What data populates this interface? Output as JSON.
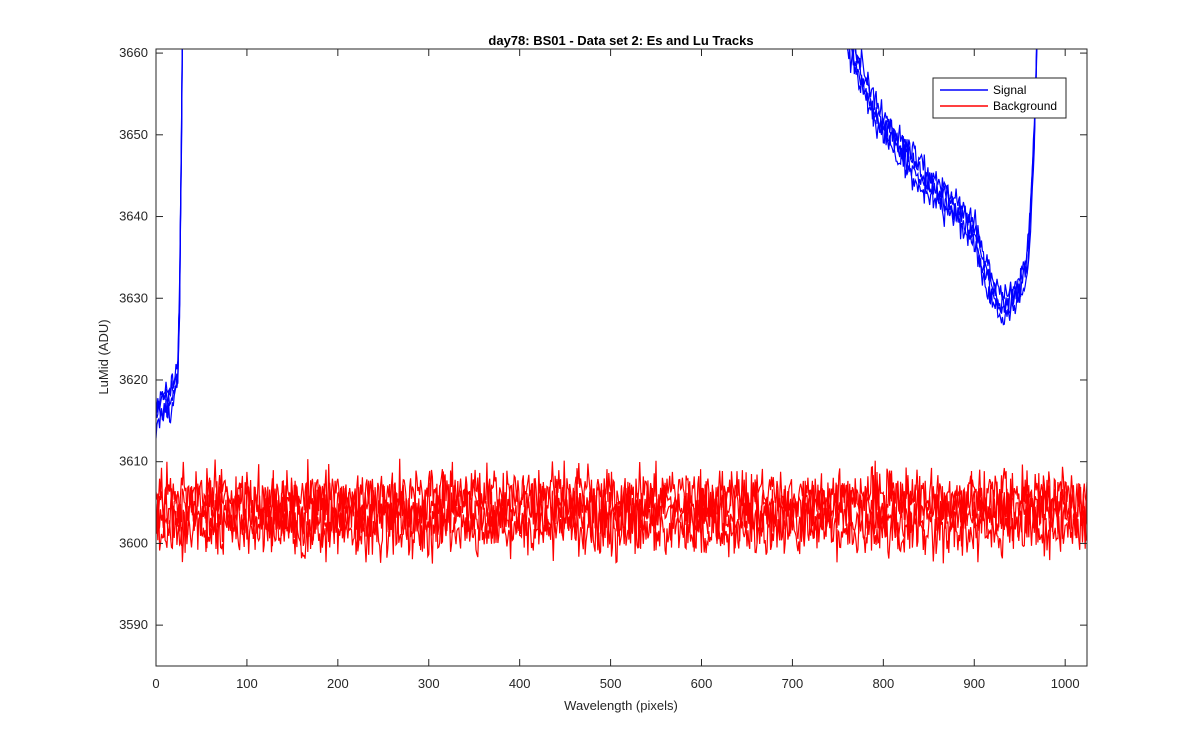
{
  "chart_data": {
    "type": "line",
    "title": "day78: BS01 - Data set 2: Es and Lu Tracks",
    "xlabel": "Wavelength (pixels)",
    "ylabel": "LuMid (ADU)",
    "xlim": [
      0,
      1024
    ],
    "ylim": [
      3585,
      3660.5
    ],
    "xticks": [
      0,
      100,
      200,
      300,
      400,
      500,
      600,
      700,
      800,
      900,
      1000
    ],
    "yticks": [
      3590,
      3600,
      3610,
      3620,
      3630,
      3640,
      3650,
      3660
    ],
    "grid": false,
    "legend": "top-right",
    "series": [
      {
        "name": "Signal",
        "color": "#0000ff",
        "traces": 4,
        "noise": 1.6,
        "points": [
          [
            0,
            3616
          ],
          [
            5,
            3616.5
          ],
          [
            10,
            3617
          ],
          [
            15,
            3617.5
          ],
          [
            20,
            3619
          ],
          [
            24,
            3621
          ],
          [
            26,
            3630
          ],
          [
            28,
            3650
          ],
          [
            30,
            3675
          ],
          [
            760,
            3662
          ],
          [
            770,
            3659
          ],
          [
            780,
            3656
          ],
          [
            790,
            3653
          ],
          [
            800,
            3651
          ],
          [
            820,
            3648
          ],
          [
            840,
            3645
          ],
          [
            860,
            3643
          ],
          [
            880,
            3641
          ],
          [
            900,
            3638
          ],
          [
            910,
            3634
          ],
          [
            920,
            3631
          ],
          [
            930,
            3629
          ],
          [
            940,
            3629.5
          ],
          [
            950,
            3631
          ],
          [
            958,
            3634
          ],
          [
            962,
            3640
          ],
          [
            966,
            3650
          ],
          [
            970,
            3665
          ]
        ]
      },
      {
        "name": "Background",
        "color": "#ff0000",
        "traces": 4,
        "noise": 2.2,
        "levels": [
          3601.5,
          3603.2,
          3604.8,
          3606.0
        ]
      }
    ]
  },
  "legend": {
    "signal_label": "Signal",
    "background_label": "Background"
  }
}
